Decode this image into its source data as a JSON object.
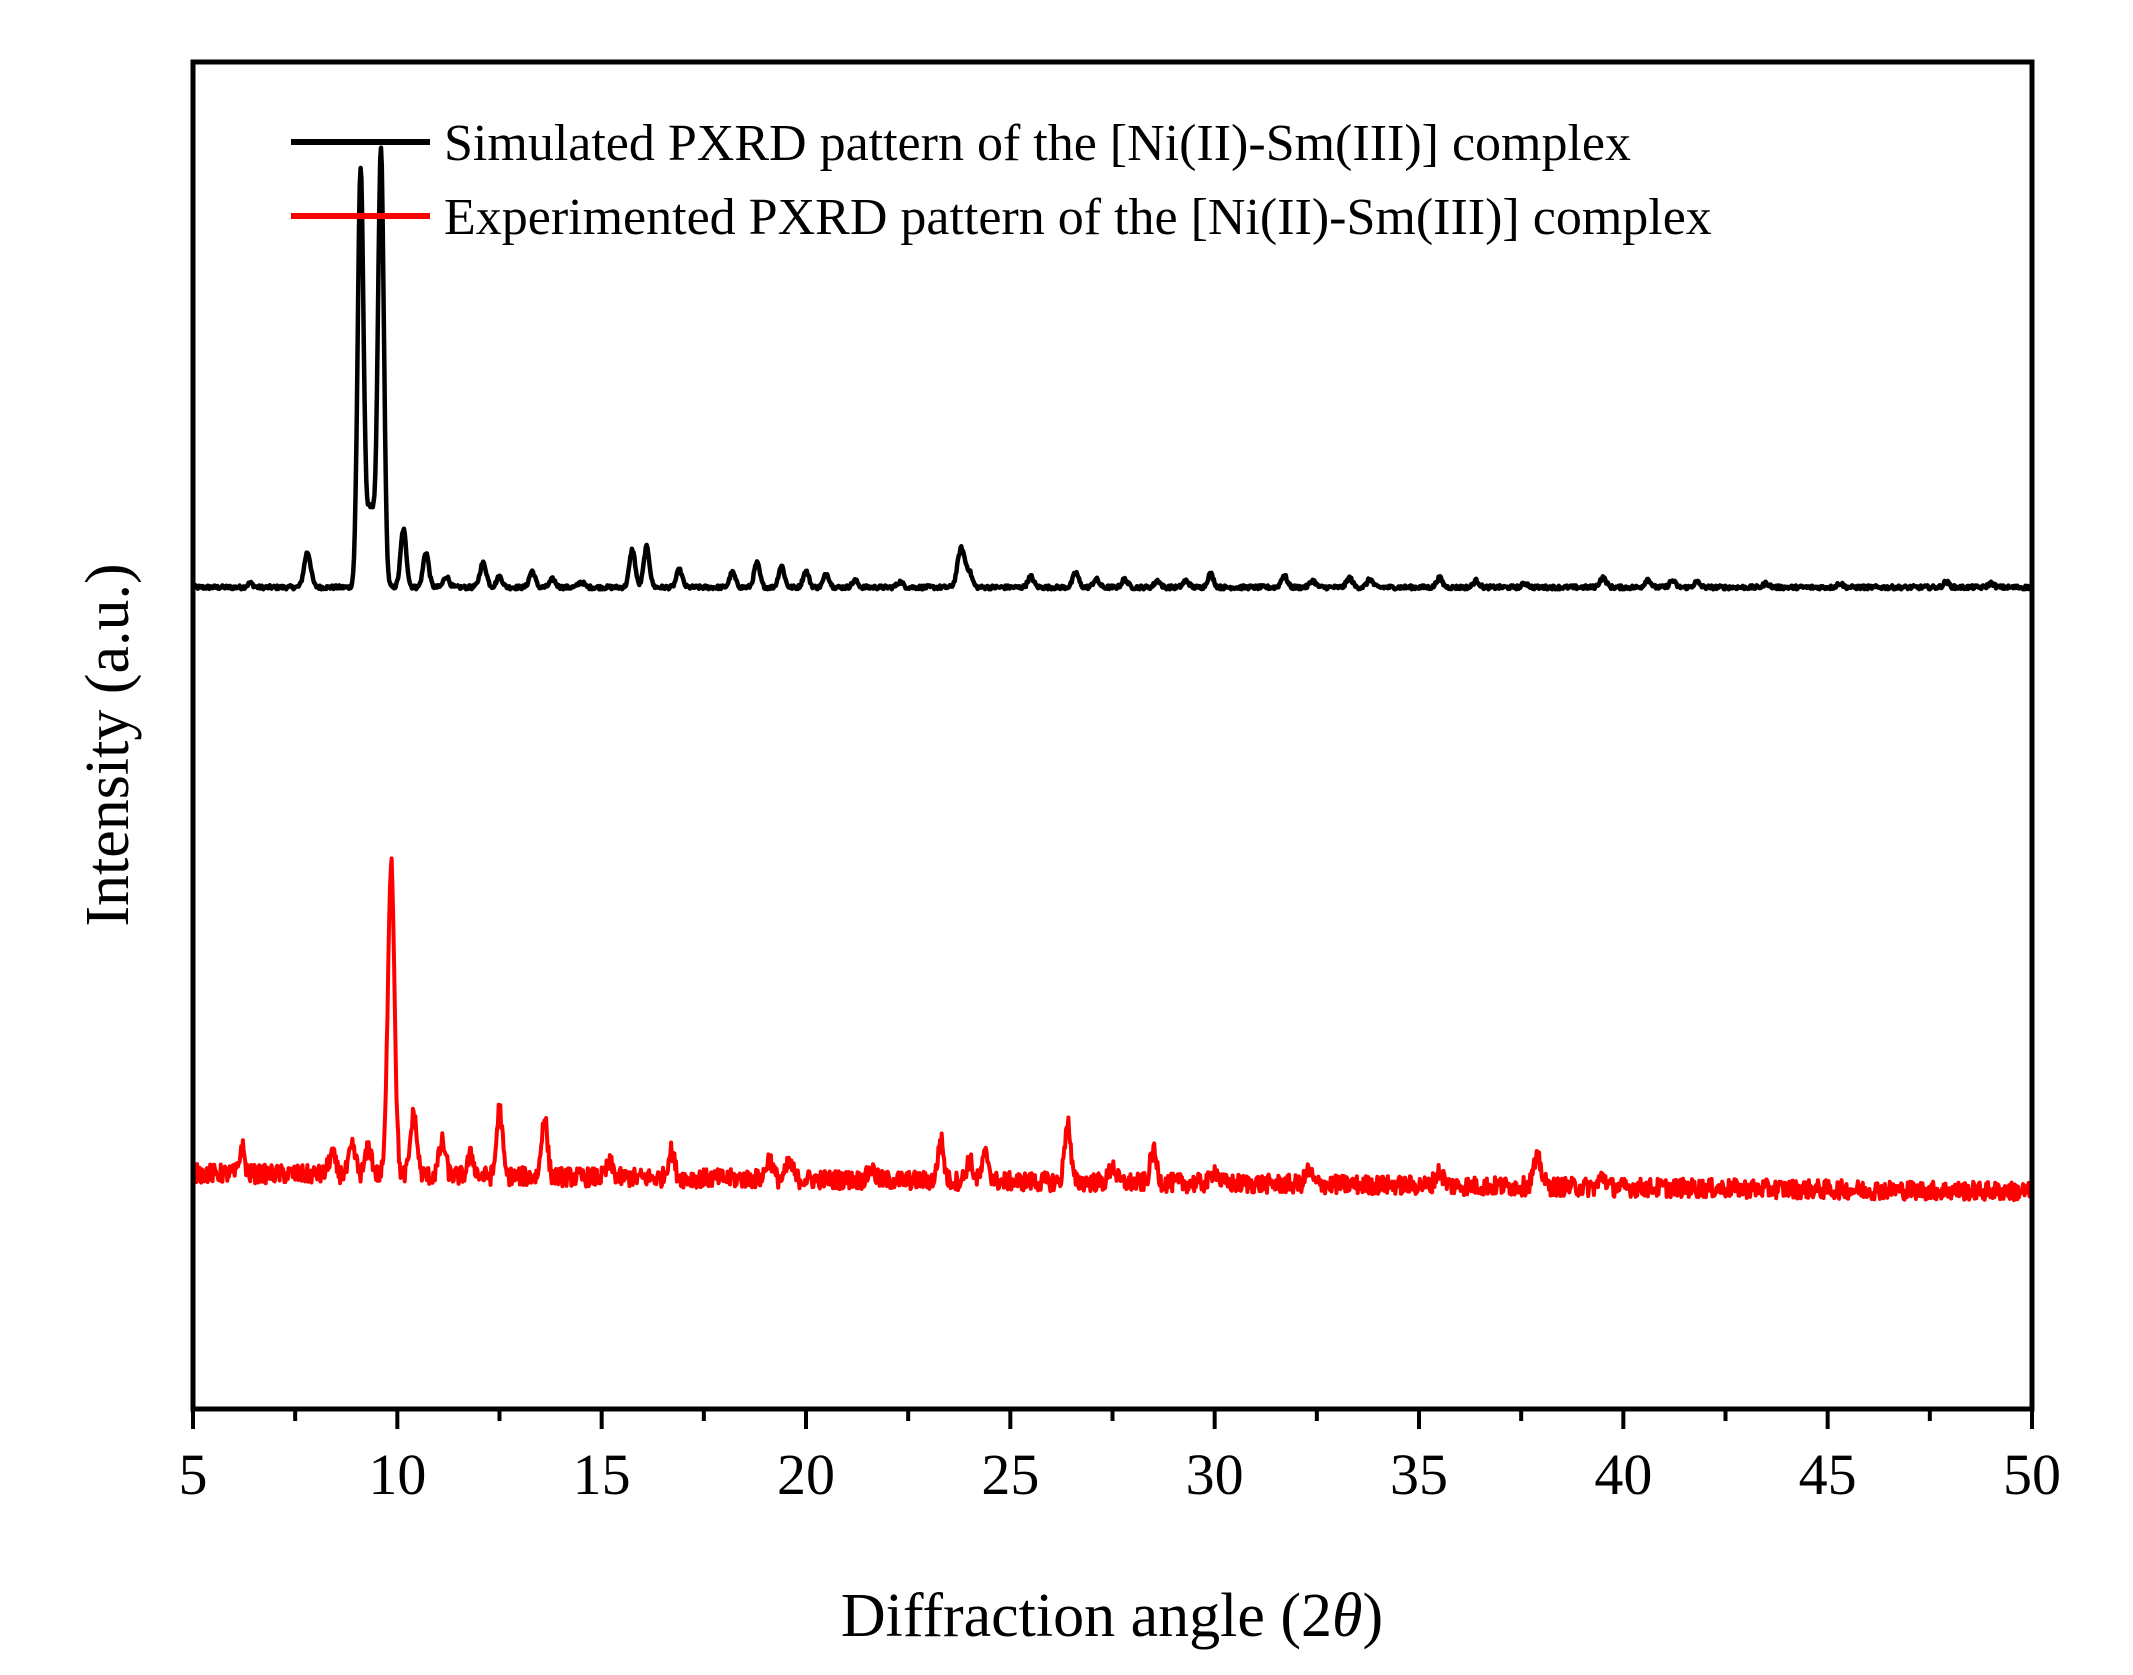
{
  "chart_data": {
    "type": "line",
    "title": "",
    "xlabel": "Diffraction angle (2θ)",
    "xlabel_parts": {
      "prefix": "Diffraction angle (2",
      "symbol": "θ",
      "suffix": ")"
    },
    "ylabel": "Intensity (a.u.)",
    "xlim": [
      5,
      50
    ],
    "ylim": [
      0,
      100
    ],
    "x_major_ticks": [
      5,
      10,
      15,
      20,
      25,
      30,
      35,
      40,
      45,
      50
    ],
    "x_tick_labels": [
      "5",
      "10",
      "15",
      "20",
      "25",
      "30",
      "35",
      "40",
      "45",
      "50"
    ],
    "x_minor_step": 2.5,
    "y_ticks_shown": false,
    "legend_position": "top",
    "series": [
      {
        "name": "Simulated PXRD pattern of the [Ni(II)-Sm(III)] complex",
        "color": "#000000",
        "baseline": 61,
        "noise": 0.15,
        "peaks": [
          [
            6.4,
            0.3,
            0.07
          ],
          [
            7.8,
            2.6,
            0.08
          ],
          [
            9.1,
            30.5,
            0.07
          ],
          [
            9.6,
            32.0,
            0.07
          ],
          [
            9.35,
            6,
            0.12
          ],
          [
            10.15,
            4.3,
            0.07
          ],
          [
            10.7,
            2.6,
            0.07
          ],
          [
            11.2,
            0.8,
            0.07
          ],
          [
            12.1,
            1.8,
            0.08
          ],
          [
            12.5,
            0.8,
            0.07
          ],
          [
            13.3,
            1.2,
            0.07
          ],
          [
            13.8,
            0.6,
            0.07
          ],
          [
            14.5,
            0.4,
            0.07
          ],
          [
            15.75,
            2.8,
            0.07
          ],
          [
            16.1,
            3.0,
            0.07
          ],
          [
            16.9,
            1.3,
            0.07
          ],
          [
            18.2,
            1.1,
            0.07
          ],
          [
            18.8,
            1.8,
            0.07
          ],
          [
            19.4,
            1.6,
            0.07
          ],
          [
            20.0,
            1.2,
            0.07
          ],
          [
            20.5,
            1.0,
            0.07
          ],
          [
            21.2,
            0.5,
            0.07
          ],
          [
            22.3,
            0.4,
            0.07
          ],
          [
            23.8,
            2.9,
            0.09
          ],
          [
            24.0,
            1.0,
            0.07
          ],
          [
            25.5,
            0.8,
            0.07
          ],
          [
            26.6,
            1.1,
            0.07
          ],
          [
            27.1,
            0.6,
            0.07
          ],
          [
            27.8,
            0.6,
            0.07
          ],
          [
            28.6,
            0.5,
            0.07
          ],
          [
            29.3,
            0.5,
            0.07
          ],
          [
            29.9,
            1.0,
            0.07
          ],
          [
            31.7,
            0.9,
            0.07
          ],
          [
            32.4,
            0.5,
            0.07
          ],
          [
            33.3,
            0.7,
            0.07
          ],
          [
            33.8,
            0.6,
            0.07
          ],
          [
            35.5,
            0.7,
            0.07
          ],
          [
            36.4,
            0.5,
            0.07
          ],
          [
            37.6,
            0.3,
            0.07
          ],
          [
            39.5,
            0.7,
            0.08
          ],
          [
            40.6,
            0.6,
            0.07
          ],
          [
            41.2,
            0.5,
            0.07
          ],
          [
            41.8,
            0.4,
            0.07
          ],
          [
            43.5,
            0.3,
            0.07
          ],
          [
            45.3,
            0.3,
            0.07
          ],
          [
            47.9,
            0.4,
            0.07
          ],
          [
            49.0,
            0.3,
            0.07
          ]
        ]
      },
      {
        "name": "Experimented PXRD pattern of the [Ni(II)-Sm(III)] complex",
        "color": "#ff0000",
        "baseline": 17.5,
        "noise": 0.7,
        "baseline_slope": -0.03,
        "peaks": [
          [
            6.2,
            2.0,
            0.06
          ],
          [
            8.4,
            1.5,
            0.08
          ],
          [
            8.9,
            2.0,
            0.08
          ],
          [
            9.3,
            2.0,
            0.08
          ],
          [
            9.85,
            23.5,
            0.08
          ],
          [
            10.4,
            4.5,
            0.08
          ],
          [
            11.1,
            2.5,
            0.08
          ],
          [
            11.8,
            1.5,
            0.08
          ],
          [
            12.5,
            5.0,
            0.07
          ],
          [
            13.6,
            4.5,
            0.07
          ],
          [
            15.2,
            1.0,
            0.08
          ],
          [
            16.7,
            2.0,
            0.08
          ],
          [
            19.1,
            1.5,
            0.08
          ],
          [
            19.6,
            1.2,
            0.08
          ],
          [
            21.6,
            0.8,
            0.08
          ],
          [
            23.3,
            3.0,
            0.07
          ],
          [
            24.0,
            1.5,
            0.08
          ],
          [
            24.4,
            2.0,
            0.08
          ],
          [
            26.4,
            4.5,
            0.07
          ],
          [
            27.5,
            1.2,
            0.08
          ],
          [
            28.5,
            2.3,
            0.08
          ],
          [
            30.0,
            1.0,
            0.08
          ],
          [
            32.3,
            1.0,
            0.08
          ],
          [
            35.5,
            1.0,
            0.1
          ],
          [
            37.9,
            2.0,
            0.1
          ],
          [
            39.5,
            0.8,
            0.08
          ]
        ]
      }
    ]
  }
}
